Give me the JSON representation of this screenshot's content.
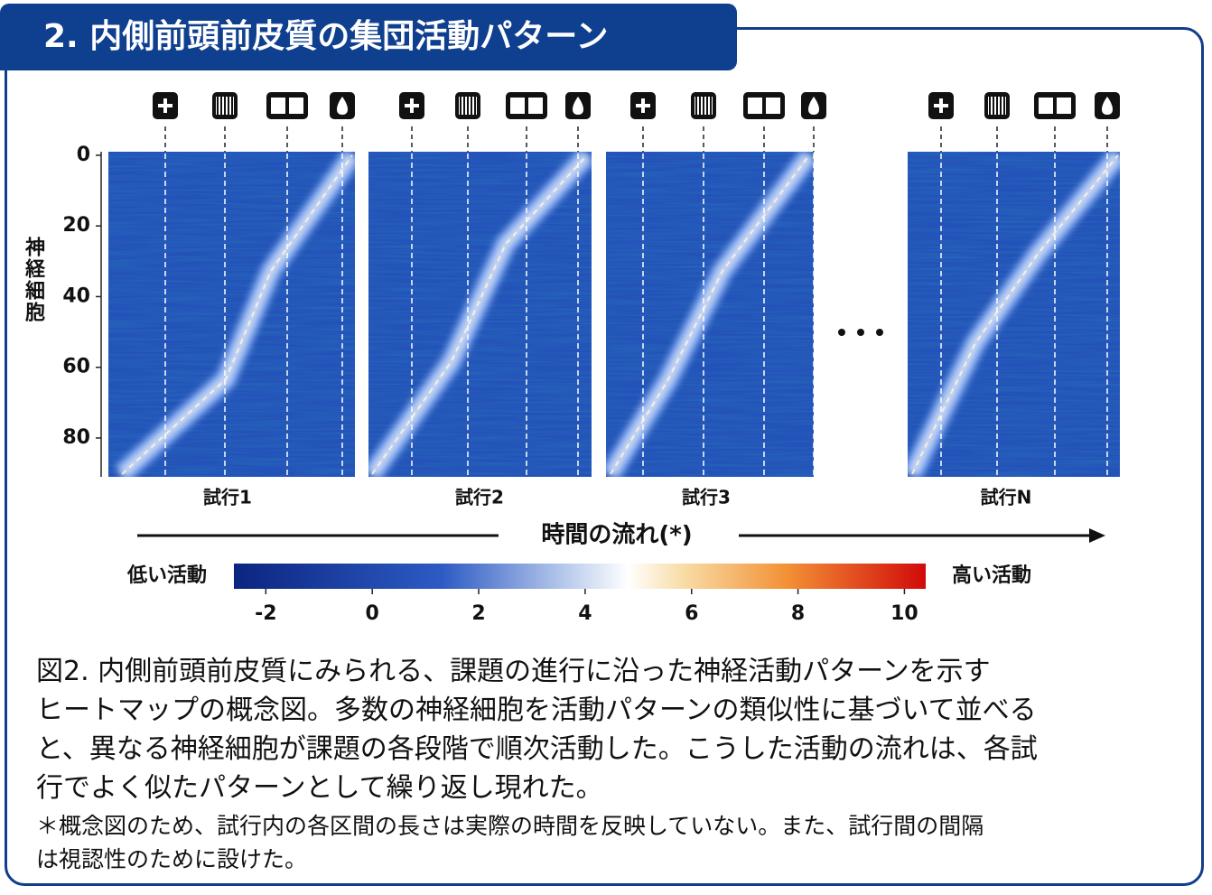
{
  "title": "2. 内側前頭前皮質の集団活動パターン",
  "figure": {
    "y_axis_label": "神経細胞",
    "ylim": [
      -1,
      91
    ],
    "yticks": [
      0,
      20,
      40,
      60,
      80
    ],
    "panels": [
      {
        "label": "試行1"
      },
      {
        "label": "試行2"
      },
      {
        "label": "試行3"
      },
      {
        "label": "試行N"
      }
    ],
    "time_arrow_label": "時間の流れ(*)",
    "colorbar": {
      "low_label": "低い活動",
      "high_label": "高い活動",
      "lim": [
        -2.6,
        10.4
      ],
      "ticks": [
        -2,
        0,
        2,
        4,
        6,
        8,
        10
      ]
    }
  },
  "caption": {
    "lines": [
      "図2. 内側前頭前皮質にみられる、課題の進行に沿った神経活動パターンを示す",
      "ヒートマップの概念図。多数の神経細胞を活動パターンの類似性に基づいて並べる",
      "と、異なる神経細胞が課題の各段階で順次活動した。こうした活動の流れは、各試",
      "行でよく似たパターンとして繰り返し現れた。"
    ]
  },
  "footnote": {
    "lines": [
      "＊概念図のため、試行内の各区間の長さは実際の時間を反映していない。また、試行間の間隔",
      "は視認性のために設けた。"
    ]
  }
}
